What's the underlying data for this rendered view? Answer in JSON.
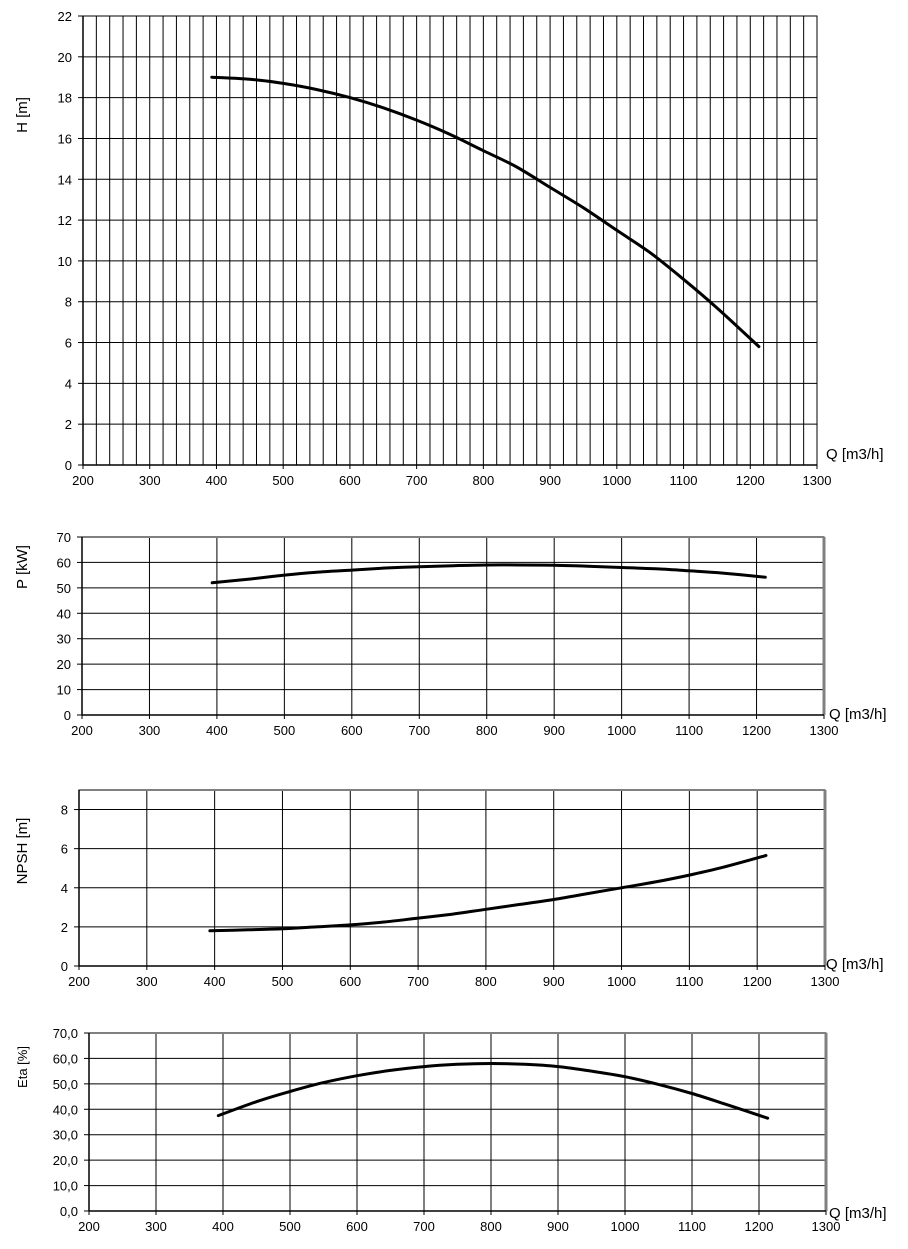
{
  "chart_data": [
    {
      "type": "line",
      "ylabel": "H [m]",
      "xlabel": "Q [m3/h]",
      "xlim": [
        200,
        1300
      ],
      "ylim": [
        0,
        22
      ],
      "xticks": [
        "200",
        "300",
        "400",
        "500",
        "600",
        "700",
        "800",
        "900",
        "1000",
        "1100",
        "1200",
        "1300"
      ],
      "yticks": [
        "0",
        "2",
        "4",
        "6",
        "8",
        "10",
        "12",
        "14",
        "16",
        "18",
        "20",
        "22"
      ],
      "grid": true,
      "series": [
        {
          "x": [
            393,
            450,
            500,
            550,
            600,
            650,
            700,
            750,
            800,
            850,
            900,
            950,
            1000,
            1050,
            1100,
            1150,
            1213
          ],
          "y": [
            19.0,
            18.9,
            18.7,
            18.4,
            18.0,
            17.5,
            16.9,
            16.2,
            15.4,
            14.6,
            13.6,
            12.6,
            11.5,
            10.4,
            9.1,
            7.7,
            5.8
          ]
        }
      ]
    },
    {
      "type": "line",
      "ylabel": "P [kW]",
      "xlabel": "Q [m3/h]",
      "xlim": [
        200,
        1300
      ],
      "ylim": [
        0,
        70
      ],
      "xticks": [
        "200",
        "300",
        "400",
        "500",
        "600",
        "700",
        "800",
        "900",
        "1000",
        "1100",
        "1200",
        "1300"
      ],
      "yticks": [
        "0",
        "10",
        "20",
        "30",
        "40",
        "50",
        "60",
        "70"
      ],
      "grid": true,
      "series": [
        {
          "x": [
            393,
            450,
            500,
            550,
            600,
            650,
            700,
            750,
            800,
            850,
            900,
            950,
            1000,
            1050,
            1100,
            1150,
            1213
          ],
          "y": [
            52.0,
            53.5,
            55.0,
            56.2,
            57.0,
            57.8,
            58.3,
            58.7,
            59.0,
            59.0,
            58.9,
            58.5,
            58.0,
            57.5,
            56.7,
            55.8,
            54.2
          ]
        }
      ]
    },
    {
      "type": "line",
      "ylabel": "NPSH [m]",
      "xlabel": "Q [m3/h]",
      "xlim": [
        200,
        1300
      ],
      "ylim": [
        0,
        9
      ],
      "xticks": [
        "200",
        "300",
        "400",
        "500",
        "600",
        "700",
        "800",
        "900",
        "1000",
        "1100",
        "1200",
        "1300"
      ],
      "yticks": [
        "0",
        "2",
        "4",
        "6",
        "8"
      ],
      "grid": true,
      "series": [
        {
          "x": [
            393,
            450,
            500,
            550,
            600,
            650,
            700,
            750,
            800,
            850,
            900,
            950,
            1000,
            1050,
            1100,
            1150,
            1213
          ],
          "y": [
            1.8,
            1.85,
            1.9,
            2.0,
            2.1,
            2.25,
            2.45,
            2.65,
            2.9,
            3.15,
            3.4,
            3.7,
            4.0,
            4.3,
            4.65,
            5.05,
            5.65
          ]
        }
      ]
    },
    {
      "type": "line",
      "ylabel": "Eta [%]",
      "xlabel": "Q [m3/h]",
      "xlim": [
        200,
        1300
      ],
      "ylim": [
        0,
        70
      ],
      "xticks": [
        "200",
        "300",
        "400",
        "500",
        "600",
        "700",
        "800",
        "900",
        "1000",
        "1100",
        "1200",
        "1300"
      ],
      "yticks": [
        "0,0",
        "10,0",
        "20,0",
        "30,0",
        "40,0",
        "50,0",
        "60,0",
        "70,0"
      ],
      "grid": true,
      "series": [
        {
          "x": [
            393,
            450,
            500,
            550,
            600,
            650,
            700,
            750,
            800,
            850,
            900,
            950,
            1000,
            1050,
            1100,
            1150,
            1213
          ],
          "y": [
            37.5,
            43.0,
            47.0,
            50.5,
            53.2,
            55.3,
            56.8,
            57.7,
            58.0,
            57.7,
            56.8,
            55.0,
            52.8,
            49.8,
            46.2,
            42.0,
            36.5
          ]
        }
      ]
    }
  ]
}
